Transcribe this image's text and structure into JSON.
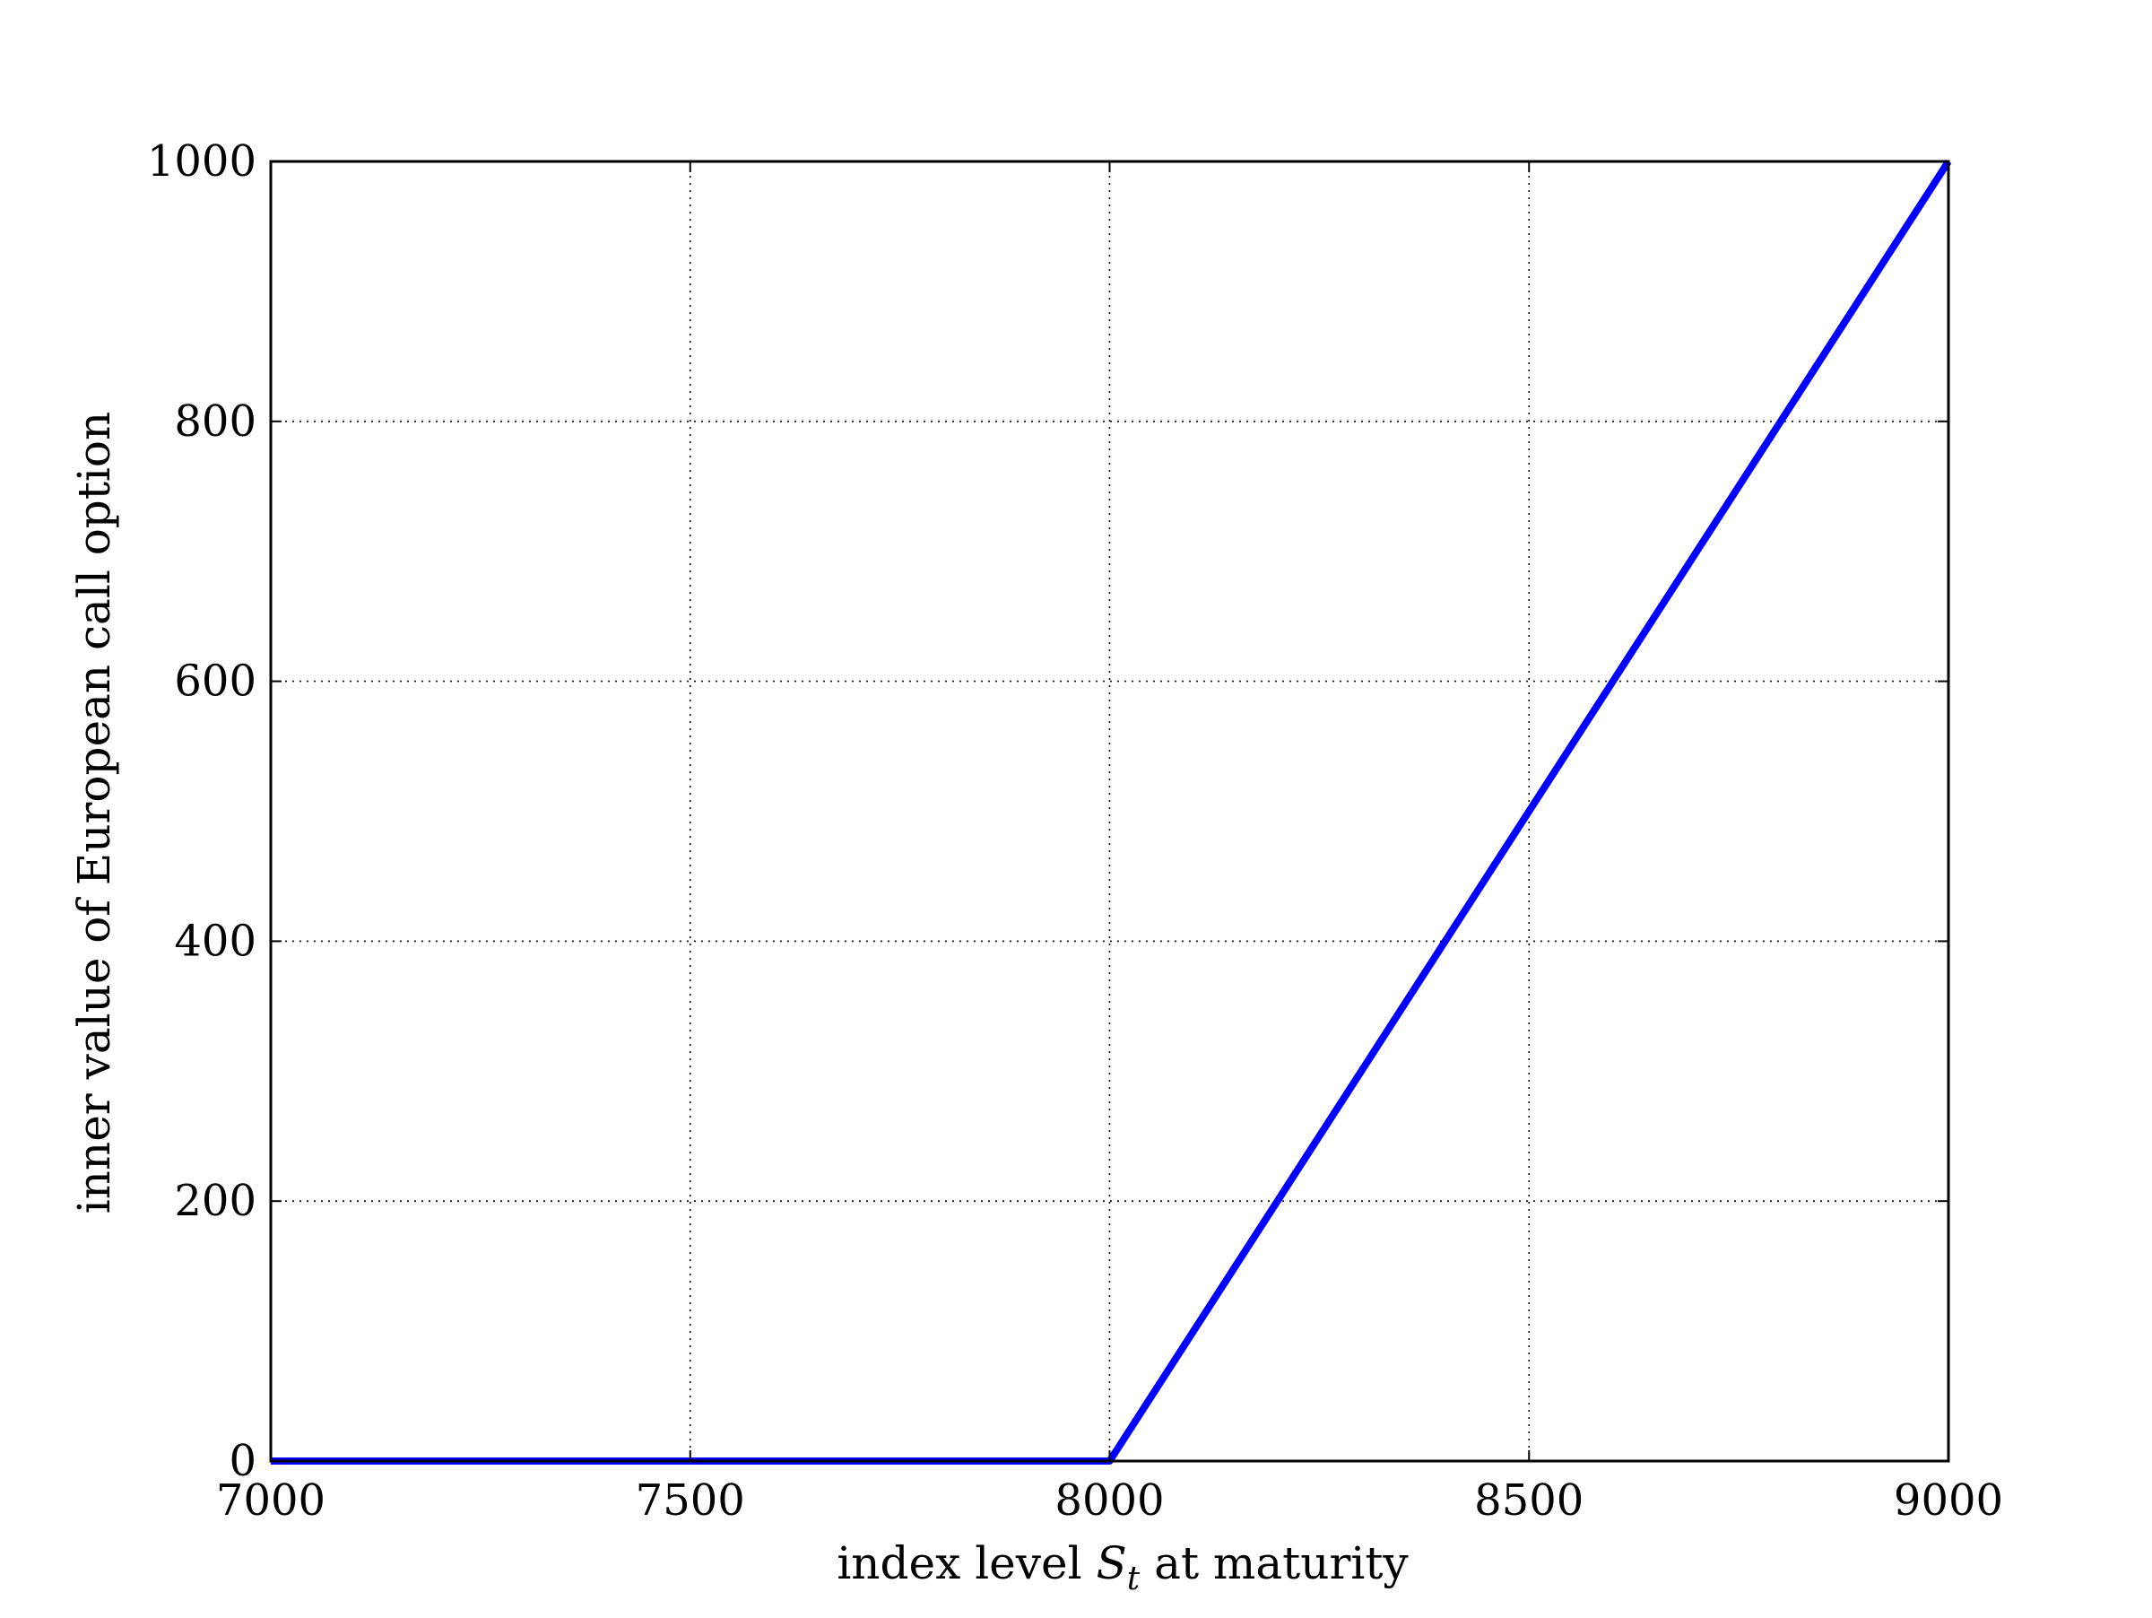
{
  "chart_data": {
    "type": "line",
    "title": "",
    "xlabel_parts": [
      "index level ",
      "S",
      "t",
      " at maturity"
    ],
    "ylabel": "inner value of European call option",
    "xlim": [
      7000,
      9000
    ],
    "ylim": [
      0,
      1000
    ],
    "xticks": [
      7000,
      7500,
      8000,
      8500,
      9000
    ],
    "yticks": [
      0,
      200,
      400,
      600,
      800,
      1000
    ],
    "grid": true,
    "grid_style": "dotted",
    "series": [
      {
        "color": "#0000ff",
        "x": [
          7000,
          8000,
          9000
        ],
        "y": [
          0,
          0,
          1000
        ]
      }
    ]
  }
}
